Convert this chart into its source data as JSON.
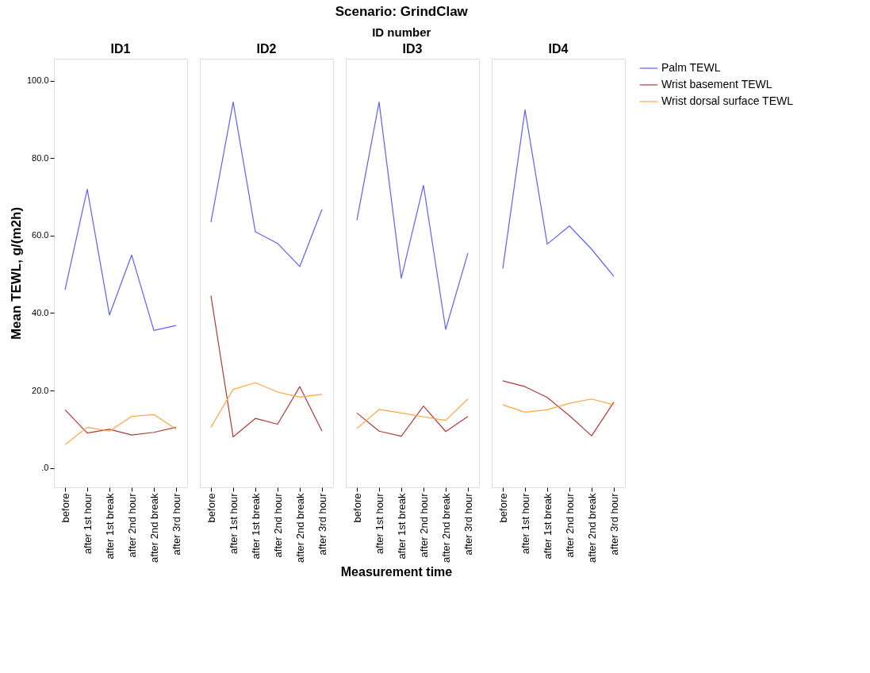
{
  "chart_data": [
    {
      "type": "line",
      "title": "ID1",
      "annotations": [
        "Scenario: GrindClaw",
        "ID number",
        "Measurement time"
      ],
      "ylabel": "Mean TEWL, g/(m2h)",
      "categories": [
        "before",
        "after 1st hour",
        "after 1st break",
        "after 2nd hour",
        "after 2nd break",
        "after 3rd hour"
      ],
      "ylim": [
        -5,
        105.7
      ],
      "yticks": [
        {
          "value": 0,
          "label": ".0"
        },
        {
          "value": 20,
          "label": "20.0"
        },
        {
          "value": 40,
          "label": "40.0"
        },
        {
          "value": 60,
          "label": "60.0"
        },
        {
          "value": 80,
          "label": "80.0"
        },
        {
          "value": 100,
          "label": "100.0"
        }
      ],
      "legend": false,
      "grid": false,
      "series": [
        {
          "color": "#5f5fff",
          "values": [
            46,
            72,
            39.5,
            55,
            35.5,
            36.8
          ]
        },
        {
          "color": "#b03a3a",
          "values": [
            15,
            9,
            10,
            8.5,
            9.2,
            10.5
          ]
        },
        {
          "color": "#ffa53a",
          "values": [
            6,
            10.5,
            9.5,
            13.3,
            13.8,
            10
          ]
        }
      ]
    },
    {
      "type": "line",
      "title": "ID2",
      "categories": [
        "before",
        "after 1st hour",
        "after 1st break",
        "after 2nd hour",
        "after 2nd break",
        "after 3rd hour"
      ],
      "ylim": [
        -5,
        105.7
      ],
      "tick_labels": "x",
      "legend": false,
      "grid": false,
      "series": [
        {
          "color": "#5f5fff",
          "values": [
            63.5,
            94.5,
            61,
            58,
            52,
            66.8
          ]
        },
        {
          "color": "#b03a3a",
          "values": [
            44.5,
            8,
            12.8,
            11.3,
            21,
            9.5
          ]
        },
        {
          "color": "#ffa53a",
          "values": [
            10.5,
            20.3,
            22,
            19.6,
            18.3,
            19
          ]
        }
      ]
    },
    {
      "type": "line",
      "title": "ID3",
      "categories": [
        "before",
        "after 1st hour",
        "after 1st break",
        "after 2nd hour",
        "after 2nd break",
        "after 3rd hour"
      ],
      "ylim": [
        -5,
        105.7
      ],
      "tick_labels": "x",
      "legend": false,
      "grid": false,
      "series": [
        {
          "color": "#5f5fff",
          "values": [
            64,
            94.5,
            49,
            73,
            35.8,
            55.5
          ]
        },
        {
          "color": "#b03a3a",
          "values": [
            14.2,
            9.5,
            8.2,
            16,
            9.4,
            13.3
          ]
        },
        {
          "color": "#ffa53a",
          "values": [
            10.2,
            15.1,
            14.2,
            13.2,
            12.3,
            17.8
          ]
        }
      ]
    },
    {
      "type": "line",
      "title": "ID4",
      "categories": [
        "before",
        "after 1st hour",
        "after 1st break",
        "after 2nd hour",
        "after 2nd break",
        "after 3rd hour"
      ],
      "ylim": [
        -5,
        105.7
      ],
      "tick_labels": "x",
      "legend": "top right",
      "grid": false,
      "series": [
        {
          "name": "Palm TEWL",
          "color": "#5f5fff",
          "values": [
            51.5,
            92.5,
            57.8,
            62.5,
            56.5,
            49.5
          ]
        },
        {
          "name": "Wrist basement TEWL",
          "color": "#b03a3a",
          "values": [
            22.5,
            21,
            18.2,
            13.5,
            8.3,
            17
          ]
        },
        {
          "name": "Wrist dorsal surface TEWL",
          "color": "#ffa53a",
          "values": [
            16.3,
            14.4,
            15,
            16.7,
            17.8,
            16.3
          ]
        }
      ]
    }
  ]
}
